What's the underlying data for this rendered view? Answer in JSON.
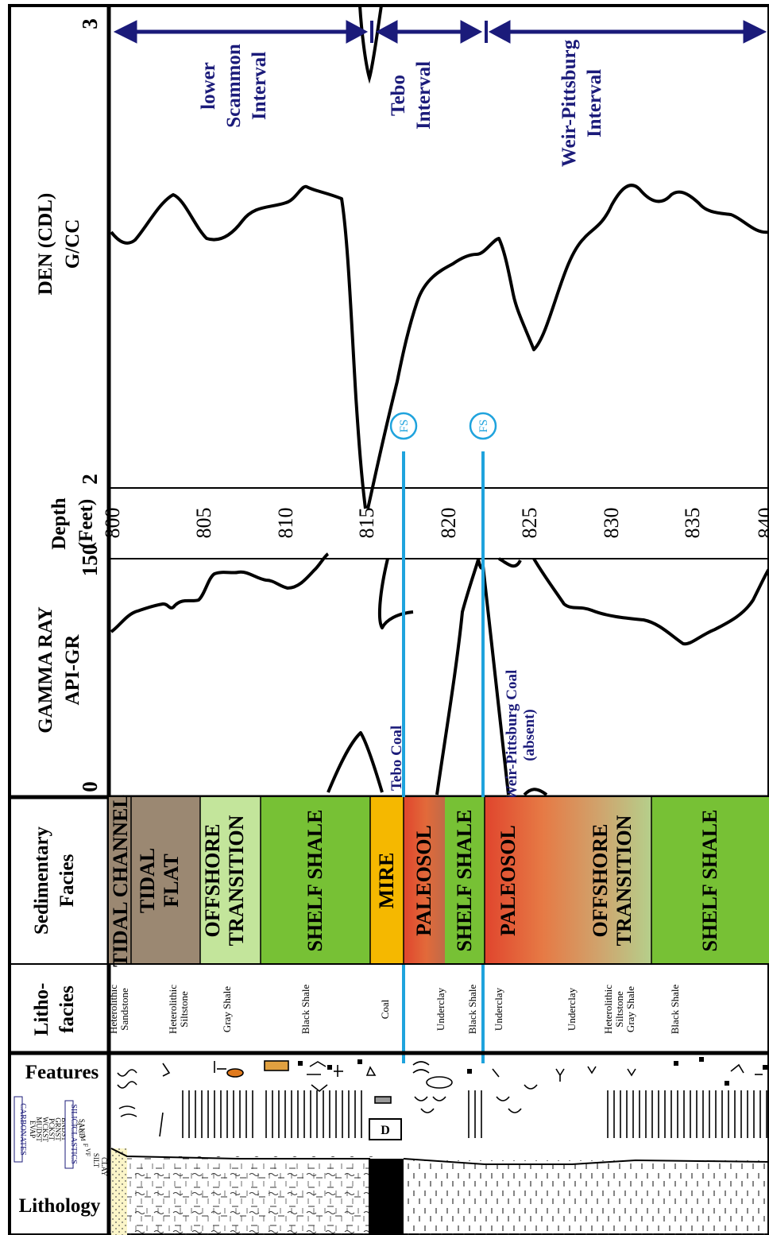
{
  "columns": {
    "lithology": "Lithology",
    "features": "Features",
    "lithofacies": "Litho-\nfacies",
    "sedimentary_facies": "Sedimentary\nFacies",
    "gamma_ray": "GAMMA RAY\nAPI-GR",
    "depth": "Depth\n(Feet)",
    "density": "DEN (CDL)\nG/CC"
  },
  "grain_size_legend": {
    "carbonates_header": "CARBONATES",
    "carbonates": [
      "EVAP",
      "MUDST",
      "WCKST",
      "PCKST",
      "GRNST",
      "BNDST"
    ],
    "siliciclastics_header": "SILICICLASTICS",
    "clay": "CLAY",
    "silt": "SILT",
    "sand": "SAND",
    "sand_sizes": [
      "VF",
      "F",
      "M",
      "C",
      ">C"
    ]
  },
  "gamma_scale": {
    "min": "0",
    "max": "150"
  },
  "density_scale": {
    "min": "2",
    "max": "3"
  },
  "depth_ticks": [
    "800",
    "805",
    "810",
    "815",
    "820",
    "825",
    "830",
    "835",
    "840"
  ],
  "lithofacies": [
    "Heterolithic\nSandstone",
    "Heterolithic\nSiltstone",
    "Gray Shale",
    "Black Shale",
    "Coal",
    "Underclay",
    "Black Shale",
    "Underclay",
    "Underclay",
    "Heterolithic\nSiltstone\nGray Shale",
    "Black Shale"
  ],
  "facies": [
    {
      "label": "TIDAL CHANNEL",
      "color": "#9b8872"
    },
    {
      "label": "TIDAL\nFLAT",
      "color": "#9b8872"
    },
    {
      "label": "OFFSHORE\nTRANSITION",
      "color": "#c3e59b"
    },
    {
      "label": "SHELF SHALE",
      "color": "#77c135"
    },
    {
      "label": "MIRE",
      "color": "#f5b800"
    },
    {
      "label": "PALEOSOL",
      "color": "#e0452d"
    },
    {
      "label": "SHELF SHALE",
      "color": "#77c135"
    },
    {
      "label": "PALEOSOL",
      "color": "#e0452d"
    },
    {
      "label": "OFFSHORE\nTRANSITION",
      "color": "#c3e59b"
    },
    {
      "label": "SHELF SHALE",
      "color": "#77c135"
    }
  ],
  "coal_labels": {
    "tebo": "Tebo Coal",
    "weir": "Weir-Pittsburg Coal\n(absent)"
  },
  "flooding_surface_label": "FS",
  "intervals": [
    {
      "label": "lower\nScammon\nInterval"
    },
    {
      "label": "Tebo\nInterval"
    },
    {
      "label": "Weir-Pittsburg\nInterval"
    }
  ],
  "feature_badges": {
    "d": "D"
  },
  "colors": {
    "fs_line": "#1fa3dd",
    "navy": "#1b1b7a",
    "coal": "#000000"
  }
}
